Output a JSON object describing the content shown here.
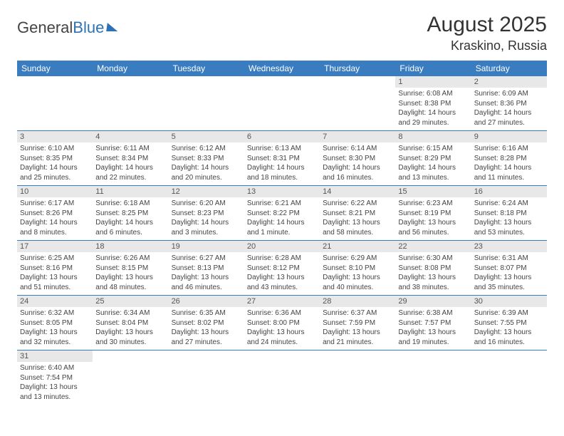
{
  "logo": {
    "text_a": "General",
    "text_b": "Blue"
  },
  "title": "August 2025",
  "location": "Kraskino, Russia",
  "colors": {
    "header_bg": "#3a7cc0",
    "header_text": "#ffffff",
    "daynum_bg": "#e8e8e8",
    "border": "#3a7cc0",
    "body_text": "#444444"
  },
  "weekdays": [
    "Sunday",
    "Monday",
    "Tuesday",
    "Wednesday",
    "Thursday",
    "Friday",
    "Saturday"
  ],
  "weeks": [
    [
      null,
      null,
      null,
      null,
      null,
      {
        "n": "1",
        "sr": "Sunrise: 6:08 AM",
        "ss": "Sunset: 8:38 PM",
        "dl": "Daylight: 14 hours and 29 minutes."
      },
      {
        "n": "2",
        "sr": "Sunrise: 6:09 AM",
        "ss": "Sunset: 8:36 PM",
        "dl": "Daylight: 14 hours and 27 minutes."
      }
    ],
    [
      {
        "n": "3",
        "sr": "Sunrise: 6:10 AM",
        "ss": "Sunset: 8:35 PM",
        "dl": "Daylight: 14 hours and 25 minutes."
      },
      {
        "n": "4",
        "sr": "Sunrise: 6:11 AM",
        "ss": "Sunset: 8:34 PM",
        "dl": "Daylight: 14 hours and 22 minutes."
      },
      {
        "n": "5",
        "sr": "Sunrise: 6:12 AM",
        "ss": "Sunset: 8:33 PM",
        "dl": "Daylight: 14 hours and 20 minutes."
      },
      {
        "n": "6",
        "sr": "Sunrise: 6:13 AM",
        "ss": "Sunset: 8:31 PM",
        "dl": "Daylight: 14 hours and 18 minutes."
      },
      {
        "n": "7",
        "sr": "Sunrise: 6:14 AM",
        "ss": "Sunset: 8:30 PM",
        "dl": "Daylight: 14 hours and 16 minutes."
      },
      {
        "n": "8",
        "sr": "Sunrise: 6:15 AM",
        "ss": "Sunset: 8:29 PM",
        "dl": "Daylight: 14 hours and 13 minutes."
      },
      {
        "n": "9",
        "sr": "Sunrise: 6:16 AM",
        "ss": "Sunset: 8:28 PM",
        "dl": "Daylight: 14 hours and 11 minutes."
      }
    ],
    [
      {
        "n": "10",
        "sr": "Sunrise: 6:17 AM",
        "ss": "Sunset: 8:26 PM",
        "dl": "Daylight: 14 hours and 8 minutes."
      },
      {
        "n": "11",
        "sr": "Sunrise: 6:18 AM",
        "ss": "Sunset: 8:25 PM",
        "dl": "Daylight: 14 hours and 6 minutes."
      },
      {
        "n": "12",
        "sr": "Sunrise: 6:20 AM",
        "ss": "Sunset: 8:23 PM",
        "dl": "Daylight: 14 hours and 3 minutes."
      },
      {
        "n": "13",
        "sr": "Sunrise: 6:21 AM",
        "ss": "Sunset: 8:22 PM",
        "dl": "Daylight: 14 hours and 1 minute."
      },
      {
        "n": "14",
        "sr": "Sunrise: 6:22 AM",
        "ss": "Sunset: 8:21 PM",
        "dl": "Daylight: 13 hours and 58 minutes."
      },
      {
        "n": "15",
        "sr": "Sunrise: 6:23 AM",
        "ss": "Sunset: 8:19 PM",
        "dl": "Daylight: 13 hours and 56 minutes."
      },
      {
        "n": "16",
        "sr": "Sunrise: 6:24 AM",
        "ss": "Sunset: 8:18 PM",
        "dl": "Daylight: 13 hours and 53 minutes."
      }
    ],
    [
      {
        "n": "17",
        "sr": "Sunrise: 6:25 AM",
        "ss": "Sunset: 8:16 PM",
        "dl": "Daylight: 13 hours and 51 minutes."
      },
      {
        "n": "18",
        "sr": "Sunrise: 6:26 AM",
        "ss": "Sunset: 8:15 PM",
        "dl": "Daylight: 13 hours and 48 minutes."
      },
      {
        "n": "19",
        "sr": "Sunrise: 6:27 AM",
        "ss": "Sunset: 8:13 PM",
        "dl": "Daylight: 13 hours and 46 minutes."
      },
      {
        "n": "20",
        "sr": "Sunrise: 6:28 AM",
        "ss": "Sunset: 8:12 PM",
        "dl": "Daylight: 13 hours and 43 minutes."
      },
      {
        "n": "21",
        "sr": "Sunrise: 6:29 AM",
        "ss": "Sunset: 8:10 PM",
        "dl": "Daylight: 13 hours and 40 minutes."
      },
      {
        "n": "22",
        "sr": "Sunrise: 6:30 AM",
        "ss": "Sunset: 8:08 PM",
        "dl": "Daylight: 13 hours and 38 minutes."
      },
      {
        "n": "23",
        "sr": "Sunrise: 6:31 AM",
        "ss": "Sunset: 8:07 PM",
        "dl": "Daylight: 13 hours and 35 minutes."
      }
    ],
    [
      {
        "n": "24",
        "sr": "Sunrise: 6:32 AM",
        "ss": "Sunset: 8:05 PM",
        "dl": "Daylight: 13 hours and 32 minutes."
      },
      {
        "n": "25",
        "sr": "Sunrise: 6:34 AM",
        "ss": "Sunset: 8:04 PM",
        "dl": "Daylight: 13 hours and 30 minutes."
      },
      {
        "n": "26",
        "sr": "Sunrise: 6:35 AM",
        "ss": "Sunset: 8:02 PM",
        "dl": "Daylight: 13 hours and 27 minutes."
      },
      {
        "n": "27",
        "sr": "Sunrise: 6:36 AM",
        "ss": "Sunset: 8:00 PM",
        "dl": "Daylight: 13 hours and 24 minutes."
      },
      {
        "n": "28",
        "sr": "Sunrise: 6:37 AM",
        "ss": "Sunset: 7:59 PM",
        "dl": "Daylight: 13 hours and 21 minutes."
      },
      {
        "n": "29",
        "sr": "Sunrise: 6:38 AM",
        "ss": "Sunset: 7:57 PM",
        "dl": "Daylight: 13 hours and 19 minutes."
      },
      {
        "n": "30",
        "sr": "Sunrise: 6:39 AM",
        "ss": "Sunset: 7:55 PM",
        "dl": "Daylight: 13 hours and 16 minutes."
      }
    ],
    [
      {
        "n": "31",
        "sr": "Sunrise: 6:40 AM",
        "ss": "Sunset: 7:54 PM",
        "dl": "Daylight: 13 hours and 13 minutes."
      },
      null,
      null,
      null,
      null,
      null,
      null
    ]
  ]
}
